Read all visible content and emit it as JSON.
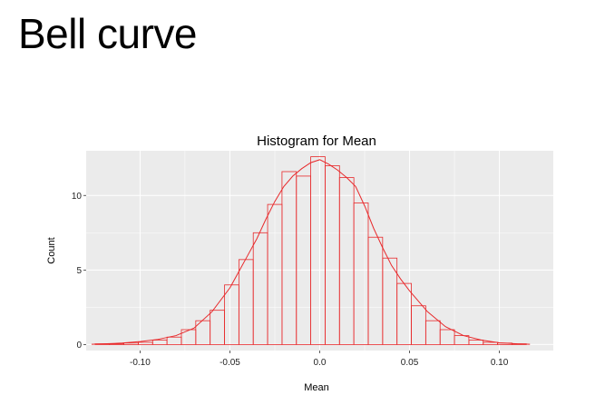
{
  "slide": {
    "title": "Bell curve"
  },
  "chart_data": {
    "type": "bar",
    "title": "Histogram for Mean",
    "xlabel": "Mean",
    "ylabel": "Count",
    "xlim": [
      -0.13,
      0.13
    ],
    "ylim": [
      -0.4,
      13.0
    ],
    "xticks": [
      -0.1,
      -0.05,
      0.0,
      0.05,
      0.1
    ],
    "xtick_labels": [
      "-0.10",
      "-0.05",
      "0.0",
      "0.05",
      "0.10"
    ],
    "yticks": [
      0,
      5,
      10
    ],
    "ytick_labels": [
      "0",
      "5",
      "10"
    ],
    "bin_width": 0.008,
    "bins": [
      {
        "x0": -0.125,
        "count": 0.05
      },
      {
        "x0": -0.117,
        "count": 0.05
      },
      {
        "x0": -0.109,
        "count": 0.1
      },
      {
        "x0": -0.101,
        "count": 0.15
      },
      {
        "x0": -0.093,
        "count": 0.3
      },
      {
        "x0": -0.085,
        "count": 0.5
      },
      {
        "x0": -0.077,
        "count": 1.0
      },
      {
        "x0": -0.069,
        "count": 1.6
      },
      {
        "x0": -0.061,
        "count": 2.3
      },
      {
        "x0": -0.053,
        "count": 4.0
      },
      {
        "x0": -0.045,
        "count": 5.7
      },
      {
        "x0": -0.037,
        "count": 7.5
      },
      {
        "x0": -0.029,
        "count": 9.4
      },
      {
        "x0": -0.021,
        "count": 11.6
      },
      {
        "x0": -0.013,
        "count": 11.3
      },
      {
        "x0": -0.005,
        "count": 12.6
      },
      {
        "x0": 0.003,
        "count": 12.0
      },
      {
        "x0": 0.011,
        "count": 11.2
      },
      {
        "x0": 0.019,
        "count": 9.5
      },
      {
        "x0": 0.027,
        "count": 7.2
      },
      {
        "x0": 0.035,
        "count": 5.8
      },
      {
        "x0": 0.043,
        "count": 4.1
      },
      {
        "x0": 0.051,
        "count": 2.6
      },
      {
        "x0": 0.059,
        "count": 1.6
      },
      {
        "x0": 0.067,
        "count": 1.0
      },
      {
        "x0": 0.075,
        "count": 0.6
      },
      {
        "x0": 0.083,
        "count": 0.3
      },
      {
        "x0": 0.091,
        "count": 0.15
      },
      {
        "x0": 0.099,
        "count": 0.1
      },
      {
        "x0": 0.107,
        "count": 0.05
      }
    ],
    "density_curve": {
      "x": [
        -0.127,
        -0.12,
        -0.11,
        -0.1,
        -0.09,
        -0.08,
        -0.07,
        -0.06,
        -0.05,
        -0.045,
        -0.04,
        -0.035,
        -0.03,
        -0.025,
        -0.02,
        -0.015,
        -0.01,
        -0.005,
        0.0,
        0.005,
        0.01,
        0.015,
        0.02,
        0.025,
        0.03,
        0.035,
        0.04,
        0.045,
        0.05,
        0.06,
        0.07,
        0.08,
        0.09,
        0.1,
        0.11,
        0.117
      ],
      "y": [
        0.02,
        0.05,
        0.1,
        0.2,
        0.35,
        0.6,
        1.1,
        2.2,
        3.8,
        4.9,
        6.0,
        7.1,
        8.4,
        9.6,
        10.6,
        11.3,
        11.8,
        12.2,
        12.4,
        12.1,
        11.7,
        11.2,
        10.6,
        9.3,
        7.8,
        6.5,
        5.3,
        4.4,
        3.6,
        2.2,
        1.2,
        0.6,
        0.3,
        0.12,
        0.05,
        0.02
      ]
    },
    "colors": {
      "bar_outline": "#e8292b",
      "curve": "#e8292b",
      "panel": "#ebebeb",
      "grid": "#ffffff"
    },
    "grid": true,
    "legend": "none"
  }
}
